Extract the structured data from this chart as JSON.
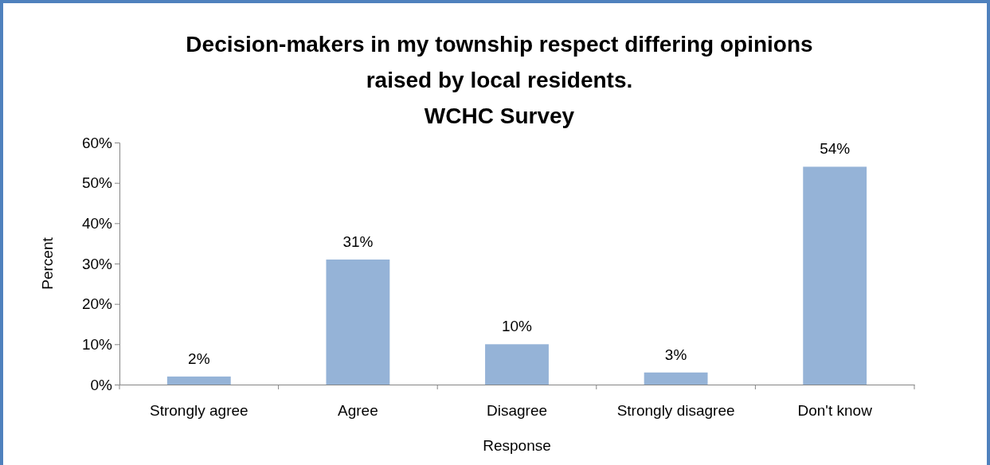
{
  "chart_data": {
    "type": "bar",
    "title": "Decision-makers in my township respect differing opinions\nraised by local residents.\nWCHC Survey",
    "xlabel": "Response",
    "ylabel": "Percent",
    "categories": [
      "Strongly agree",
      "Agree",
      "Disagree",
      "Strongly disagree",
      "Don't know"
    ],
    "values": [
      2,
      31,
      10,
      3,
      54
    ],
    "value_labels": [
      "2%",
      "31%",
      "10%",
      "3%",
      "54%"
    ],
    "color": "#95b3d7",
    "ylim": [
      0,
      60
    ],
    "yticks": [
      {
        "value": 0,
        "label": "0%"
      },
      {
        "value": 10,
        "label": "10%"
      },
      {
        "value": 20,
        "label": "20%"
      },
      {
        "value": 30,
        "label": "30%"
      },
      {
        "value": 40,
        "label": "40%"
      },
      {
        "value": 50,
        "label": "50%"
      },
      {
        "value": 60,
        "label": "60%"
      }
    ]
  }
}
